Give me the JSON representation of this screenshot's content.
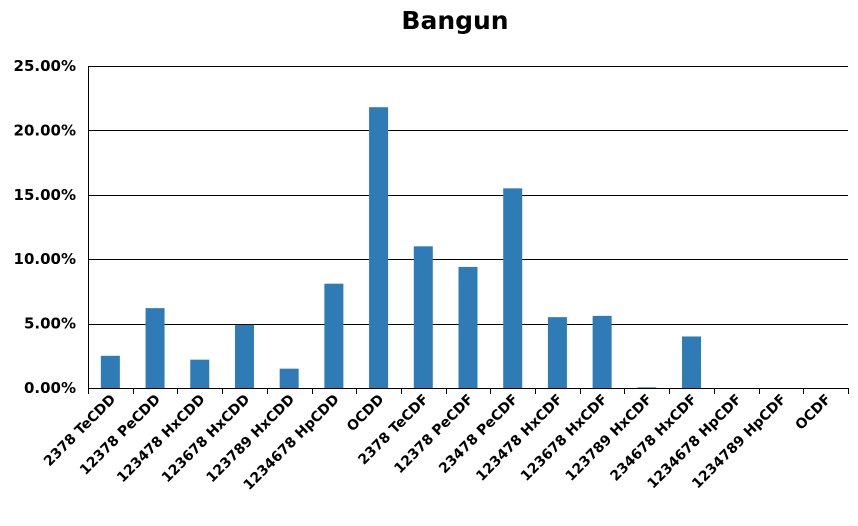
{
  "chart_data": {
    "type": "bar",
    "title": "Bangun",
    "xlabel": "",
    "ylabel": "",
    "ylim": [
      0,
      25
    ],
    "y_tick_values": [
      0,
      5,
      10,
      15,
      20,
      25
    ],
    "y_tick_labels": [
      "0.00%",
      "5.00%",
      "10.00%",
      "15.00%",
      "20.00%",
      "25.00%"
    ],
    "grid": true,
    "bar_color": "#2e7bb6",
    "categories": [
      "2378 TeCDD",
      "12378 PeCDD",
      "123478 HxCDD",
      "123678 HxCDD",
      "123789 HxCDD",
      "1234678 HpCDD",
      "OCDD",
      "2378 TeCDF",
      "12378 PeCDF",
      "23478 PeCDF",
      "123478 HxCDF",
      "123678 HxCDF",
      "123789 HxCDF",
      "234678 HxCDF",
      "1234678 HpCDF",
      "1234789 HpCDF",
      "OCDF"
    ],
    "values": [
      2.5,
      6.2,
      2.2,
      4.9,
      1.5,
      8.1,
      21.8,
      11.0,
      9.4,
      15.5,
      5.5,
      5.6,
      0.05,
      4.0,
      0,
      0,
      0
    ]
  }
}
